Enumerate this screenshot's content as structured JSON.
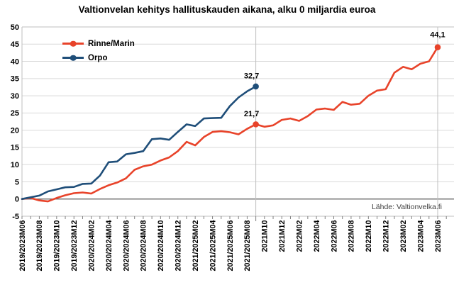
{
  "chart_data": {
    "type": "line",
    "title": "Valtionvelan kehitys hallituskauden aikana, alku 0 miljardia euroa",
    "source": "Lähde: Valtionvelka.fi",
    "ylabel": "",
    "xlabel": "",
    "ylim": [
      -5,
      50
    ],
    "ytick_step": 5,
    "grid": true,
    "legend_position": "top-left",
    "x_label_interval": 2,
    "highlight_x_index": 27,
    "x_tick_labels": [
      "2019/2023M06",
      "2019/2023M08",
      "2019/2023M10",
      "2019/2023M12",
      "2020/2024M02",
      "2020/2024M04",
      "2020/2024M06",
      "2020/2024M08",
      "2020/2024M10",
      "2020/2024M12",
      "2021/2025M02",
      "2021/2025M04",
      "2021/2025M06",
      "2021/2025M08",
      "2021M10",
      "2021M12",
      "2022M02",
      "2022M04",
      "2022M06",
      "2022M08",
      "2022M10",
      "2022M12",
      "2023M02",
      "2023M04",
      "2023M06"
    ],
    "series": [
      {
        "name": "Rinne/Marin",
        "color": "#e8432a",
        "values": [
          0,
          0.3,
          -0.4,
          -0.7,
          0.3,
          1.1,
          1.7,
          1.9,
          1.6,
          2.9,
          4.0,
          4.8,
          6.0,
          8.5,
          9.5,
          10.0,
          11.2,
          12.1,
          13.9,
          16.6,
          15.6,
          18.0,
          19.5,
          19.7,
          19.4,
          18.8,
          20.4,
          21.7,
          21.0,
          21.4,
          23.0,
          23.4,
          22.7,
          24.1,
          26.0,
          26.3,
          25.9,
          28.2,
          27.4,
          27.7,
          30.0,
          31.5,
          31.9,
          36.7,
          38.4,
          37.7,
          39.3,
          40.0,
          44.1
        ],
        "annotations": [
          {
            "index": 27,
            "label": "21,7"
          },
          {
            "index": 48,
            "label": "44,1"
          }
        ]
      },
      {
        "name": "Orpo",
        "color": "#1f4e79",
        "values": [
          0,
          0.5,
          1.0,
          2.2,
          2.8,
          3.4,
          3.5,
          4.4,
          4.5,
          6.8,
          10.7,
          10.9,
          13.0,
          13.4,
          13.9,
          17.4,
          17.6,
          17.2,
          19.5,
          21.7,
          21.2,
          23.4,
          23.5,
          23.6,
          27.0,
          29.5,
          31.3,
          32.7
        ],
        "annotations": [
          {
            "index": 27,
            "label": "32,7"
          }
        ]
      }
    ],
    "colors": {
      "background": "#ffffff",
      "grid": "#d9d9d9",
      "zero_line": "#595959",
      "border": "#bfbfbf",
      "tick": "#808080",
      "text": "#000000",
      "source_text": "#404040"
    }
  }
}
